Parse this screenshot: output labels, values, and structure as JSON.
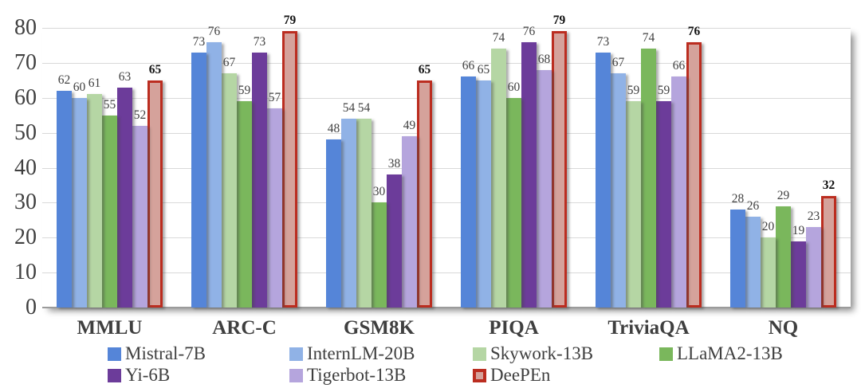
{
  "chart_data": {
    "type": "bar",
    "title": "",
    "xlabel": "",
    "ylabel": "",
    "categories": [
      "MMLU",
      "ARC-C",
      "GSM8K",
      "PIQA",
      "TriviaQA",
      "NQ"
    ],
    "series": [
      {
        "name": "Mistral-7B",
        "color": "#5585D8",
        "values": [
          62,
          73,
          48,
          66,
          73,
          28
        ]
      },
      {
        "name": "InternLM-20B",
        "color": "#90B2E6",
        "values": [
          60,
          76,
          54,
          65,
          67,
          26
        ]
      },
      {
        "name": "Skywork-13B",
        "color": "#B5D6A4",
        "values": [
          61,
          67,
          54,
          74,
          59,
          20
        ]
      },
      {
        "name": "LLaMA2-13B",
        "color": "#7AB75C",
        "values": [
          55,
          59,
          30,
          60,
          74,
          29
        ]
      },
      {
        "name": "Yi-6B",
        "color": "#6C3C9A",
        "values": [
          63,
          73,
          38,
          76,
          59,
          19
        ]
      },
      {
        "name": "Tigerbot-13B",
        "color": "#B5A5DD",
        "values": [
          52,
          57,
          49,
          68,
          66,
          23
        ]
      },
      {
        "name": "DeePEn",
        "color": "#D5A29B",
        "border": "#BB2D20",
        "emphasis": true,
        "values": [
          65,
          79,
          65,
          79,
          76,
          32
        ]
      }
    ],
    "ylim": [
      0,
      80
    ],
    "yticks": [
      0,
      10,
      20,
      30,
      40,
      50,
      60,
      70,
      80
    ],
    "grid": true,
    "legend_position": "bottom",
    "legend_rows": [
      [
        "Mistral-7B",
        "InternLM-20B",
        "Skywork-13B",
        "LLaMA2-13B"
      ],
      [
        "Yi-6B",
        "Tigerbot-13B",
        "DeePEn"
      ]
    ],
    "colors": {
      "gridline": "#d9d9d9",
      "baseline": "#9b9b9b",
      "axis_text": "#3f3f3f",
      "value_label": "#404040",
      "emphasis_label": "#111111"
    }
  }
}
